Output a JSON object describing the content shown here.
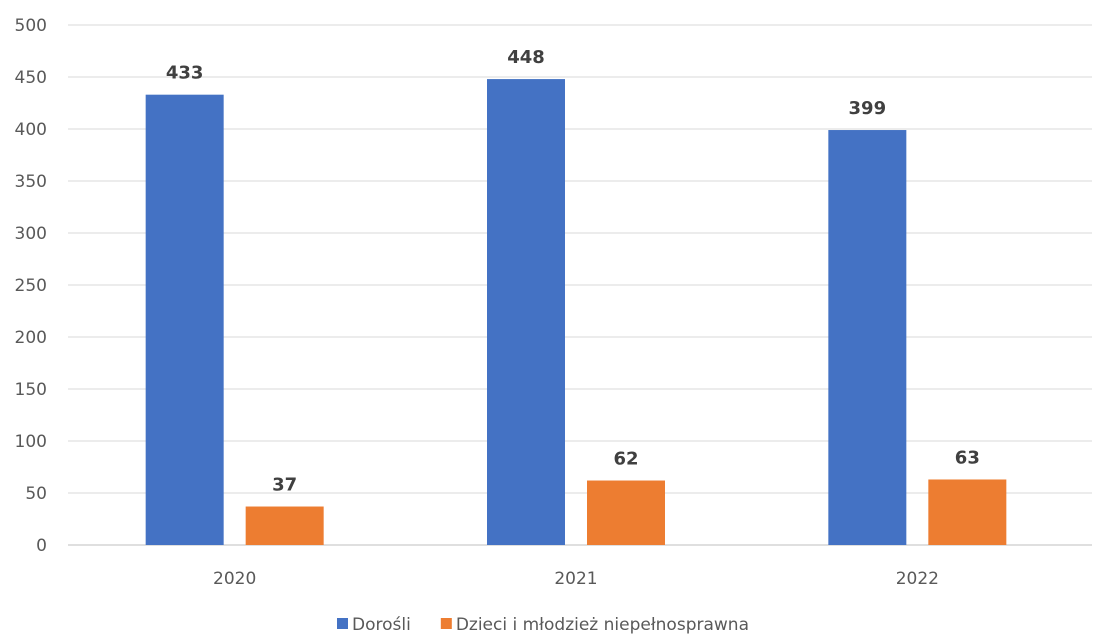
{
  "chart_data": {
    "type": "bar",
    "categories": [
      "2020",
      "2021",
      "2022"
    ],
    "series": [
      {
        "name": "Dorośli",
        "values": [
          433,
          448,
          399
        ],
        "color": "#4472C4"
      },
      {
        "name": "Dzieci i młodzież niepełnosprawna",
        "values": [
          37,
          62,
          63
        ],
        "color": "#ED7D31"
      }
    ],
    "ylim": [
      0,
      500
    ],
    "yticks": [
      0,
      50,
      100,
      150,
      200,
      250,
      300,
      350,
      400,
      450,
      500
    ],
    "grid": true,
    "legend_position": "bottom",
    "data_labels": true
  }
}
